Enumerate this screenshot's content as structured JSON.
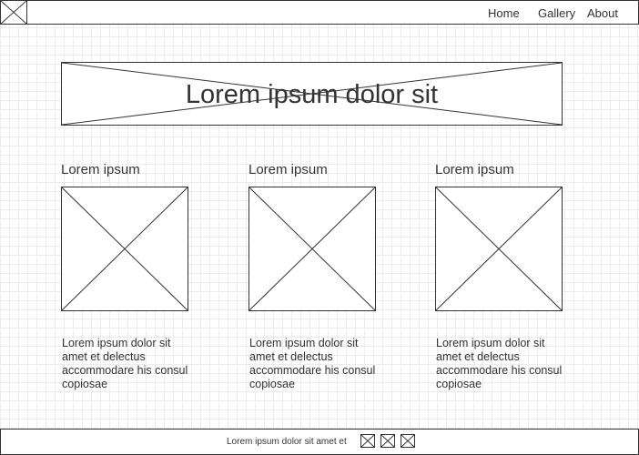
{
  "header": {
    "logo_icon": "image-placeholder-icon",
    "nav": [
      {
        "label": "Home"
      },
      {
        "label": "Gallery"
      },
      {
        "label": "About"
      }
    ]
  },
  "hero": {
    "title": "Lorem ipsum dolor sit",
    "image_icon": "image-placeholder-icon"
  },
  "columns": [
    {
      "heading": "Lorem ipsum",
      "image_icon": "image-placeholder-icon",
      "text": "Lorem ipsum dolor sit amet et delectus accommodare his consul copiosae"
    },
    {
      "heading": "Lorem ipsum",
      "image_icon": "image-placeholder-icon",
      "text": "Lorem ipsum dolor sit amet et delectus accommodare his consul copiosae"
    },
    {
      "heading": "Lorem ipsum",
      "image_icon": "image-placeholder-icon",
      "text": "Lorem ipsum dolor sit amet et delectus accommodare his consul copiosae"
    }
  ],
  "footer": {
    "text": "Lorem ipsum dolor sit amet et",
    "icons": [
      "image-placeholder-icon",
      "image-placeholder-icon",
      "image-placeholder-icon"
    ]
  },
  "colors": {
    "stroke": "#333333",
    "background": "#ffffff",
    "grid": "#ececec"
  }
}
